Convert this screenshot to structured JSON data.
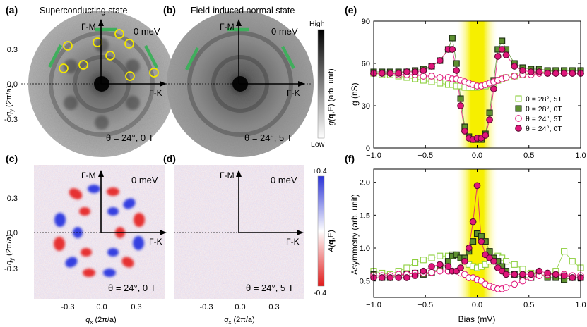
{
  "figure": {
    "panel_labels": {
      "a": "(a)",
      "b": "(b)",
      "c": "(c)",
      "d": "(d)",
      "e": "(e)",
      "f": "(f)"
    },
    "captions": {
      "a": "Superconducting state",
      "b": "Field-induced normal state"
    },
    "energy_label": "0 meV",
    "direction_labels": {
      "gm": "Γ-M",
      "gk": "Γ-K"
    },
    "conditions": {
      "a": "θ = 24°, 0 T",
      "b": "θ = 24°, 5 T",
      "c": "θ = 24°, 0 T",
      "d": "θ = 24°, 5 T"
    },
    "map_axes": {
      "ylabel_main": "q",
      "ylabel_sub": "y",
      "ylabel_unit": " (2π/a)",
      "xlabel_main": "q",
      "xlabel_sub": "x",
      "xlabel_unit": " (2π/a)",
      "ticks": [
        "-0.3",
        "0.0",
        "0.3"
      ]
    },
    "colorbar_g": {
      "top": "High",
      "bottom": "Low",
      "label_pre": "g(",
      "label_q": "q",
      "label_post": ",E) (arb. unit)"
    },
    "colorbar_a": {
      "top": "+0.4",
      "bottom": "-0.4",
      "label_pre": "A(",
      "label_q": "q",
      "label_post": ",E)"
    },
    "colors": {
      "green_bar": "#3fae5c",
      "yellow_circle": "#f2e600",
      "gap_band": "#f6ef00",
      "light_green": "#8ccf3c",
      "dark_green": "#5d8f2f",
      "magenta": "#e0157a"
    }
  },
  "chart_data": [
    {
      "panel": "e",
      "type": "scatter",
      "title": "",
      "xlabel": "Bias (mV)",
      "ylabel": "g (nS)",
      "xlim": [
        -1.0,
        1.0
      ],
      "ylim": [
        0,
        90
      ],
      "xticks": [
        "−1.0",
        "−0.5",
        "0.0",
        "0.5",
        "1.0"
      ],
      "yticks": [
        "0",
        "30",
        "60",
        "90"
      ],
      "legend": [
        "θ = 28°, 5T",
        "θ = 28°, 0T",
        "θ = 24°, 5T",
        "θ = 24°, 0T"
      ],
      "x": [
        -1.0,
        -0.92,
        -0.84,
        -0.76,
        -0.68,
        -0.6,
        -0.52,
        -0.44,
        -0.36,
        -0.28,
        -0.24,
        -0.2,
        -0.16,
        -0.12,
        -0.08,
        -0.04,
        0.0,
        0.04,
        0.08,
        0.12,
        0.16,
        0.2,
        0.24,
        0.28,
        0.36,
        0.44,
        0.52,
        0.6,
        0.68,
        0.76,
        0.84,
        0.92,
        1.0
      ],
      "series": [
        {
          "name": "θ = 28°, 5T",
          "values": [
            53,
            52,
            52,
            51,
            50,
            49,
            48,
            47,
            46,
            45,
            45,
            44,
            44,
            43,
            43,
            43,
            43,
            44,
            44,
            45,
            46,
            48,
            49,
            50,
            51,
            52,
            53,
            54,
            54,
            55,
            55,
            55,
            55
          ]
        },
        {
          "name": "θ = 28°, 0T",
          "values": [
            54,
            54,
            54,
            54,
            54,
            55,
            56,
            58,
            62,
            70,
            78,
            60,
            35,
            15,
            8,
            6,
            6,
            6,
            10,
            25,
            48,
            70,
            76,
            70,
            60,
            57,
            56,
            56,
            55,
            55,
            55,
            55,
            55
          ]
        },
        {
          "name": "θ = 24°, 5T",
          "values": [
            53,
            53,
            53,
            52,
            52,
            52,
            51,
            51,
            50,
            50,
            49,
            49,
            48,
            47,
            46,
            45,
            44,
            44,
            45,
            46,
            47,
            48,
            49,
            50,
            51,
            52,
            52,
            53,
            53,
            53,
            53,
            53,
            53
          ]
        },
        {
          "name": "θ = 24°, 0T",
          "values": [
            53,
            53,
            53,
            53,
            54,
            54,
            55,
            58,
            62,
            70,
            70,
            55,
            30,
            12,
            7,
            6,
            7,
            7,
            9,
            20,
            42,
            65,
            70,
            66,
            58,
            55,
            54,
            54,
            53,
            53,
            53,
            53,
            53
          ]
        }
      ]
    },
    {
      "panel": "f",
      "type": "scatter",
      "title": "",
      "xlabel": "Bias (mV)",
      "ylabel": "Asymmetry (arb. unit)",
      "xlim": [
        -1.0,
        1.0
      ],
      "ylim": [
        0.25,
        2.2
      ],
      "xticks": [
        "−1.0",
        "−0.5",
        "0.0",
        "0.5",
        "1.0"
      ],
      "yticks": [
        "0.5",
        "1.0",
        "1.5",
        "2.0"
      ],
      "x": [
        -1.0,
        -0.92,
        -0.84,
        -0.76,
        -0.68,
        -0.6,
        -0.52,
        -0.44,
        -0.36,
        -0.28,
        -0.24,
        -0.2,
        -0.16,
        -0.12,
        -0.08,
        -0.04,
        0.0,
        0.04,
        0.08,
        0.12,
        0.16,
        0.2,
        0.24,
        0.28,
        0.36,
        0.44,
        0.52,
        0.6,
        0.68,
        0.76,
        0.84,
        0.92,
        1.0
      ],
      "series": [
        {
          "name": "θ = 28°, 5T",
          "values": [
            0.65,
            0.62,
            0.6,
            0.65,
            0.7,
            0.78,
            0.82,
            0.85,
            0.88,
            0.88,
            0.9,
            0.88,
            0.85,
            0.8,
            0.75,
            0.72,
            0.7,
            0.72,
            0.75,
            0.8,
            0.85,
            0.88,
            0.85,
            0.8,
            0.75,
            0.68,
            0.62,
            0.6,
            0.58,
            0.65,
            0.95,
            0.8,
            0.7
          ]
        },
        {
          "name": "θ = 28°, 0T",
          "values": [
            0.6,
            0.55,
            0.55,
            0.58,
            0.6,
            0.62,
            0.6,
            0.62,
            0.7,
            0.8,
            0.88,
            0.9,
            0.85,
            0.85,
            0.95,
            1.1,
            1.22,
            1.18,
            1.1,
            0.95,
            0.85,
            0.8,
            0.72,
            0.65,
            0.6,
            0.55,
            0.55,
            0.6,
            0.55,
            0.55,
            0.52,
            0.55,
            0.55
          ]
        },
        {
          "name": "θ = 24°, 5T",
          "values": [
            0.58,
            0.58,
            0.58,
            0.6,
            0.6,
            0.62,
            0.62,
            0.63,
            0.65,
            0.65,
            0.65,
            0.65,
            0.62,
            0.6,
            0.55,
            0.55,
            0.52,
            0.5,
            0.45,
            0.42,
            0.4,
            0.38,
            0.38,
            0.4,
            0.45,
            0.5,
            0.55,
            0.58,
            0.6,
            0.6,
            0.6,
            0.58,
            0.58
          ]
        },
        {
          "name": "θ = 24°, 0T",
          "values": [
            0.55,
            0.55,
            0.55,
            0.55,
            0.55,
            0.58,
            0.65,
            0.72,
            0.75,
            0.72,
            0.65,
            0.65,
            0.7,
            0.8,
            1.0,
            1.4,
            1.95,
            1.1,
            0.9,
            0.85,
            0.8,
            0.7,
            0.65,
            0.6,
            0.6,
            0.6,
            0.6,
            0.65,
            0.62,
            0.6,
            0.58,
            0.55,
            0.55
          ]
        }
      ]
    }
  ]
}
